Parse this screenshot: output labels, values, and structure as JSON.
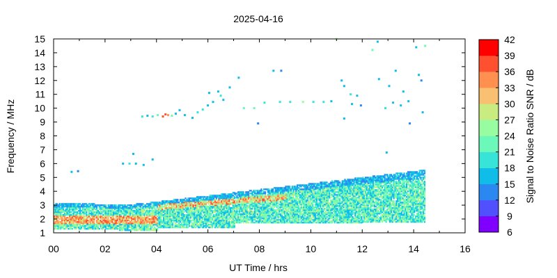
{
  "chart_data": {
    "type": "heatmap",
    "title": "2025-04-16",
    "xlabel": "UT Time / hrs",
    "ylabel": "Frequency / MHz",
    "colorbar_label": "Signal to Noise Ratio SNR / dB",
    "xlim": [
      0,
      16
    ],
    "ylim": [
      1,
      15
    ],
    "x_ticks": [
      "00",
      "02",
      "04",
      "06",
      "08",
      "10",
      "12",
      "14",
      "16"
    ],
    "y_ticks": [
      "1",
      "2",
      "3",
      "4",
      "5",
      "6",
      "7",
      "8",
      "9",
      "10",
      "11",
      "12",
      "13",
      "14",
      "15"
    ],
    "colorbar": {
      "levels": [
        "6",
        "9",
        "12",
        "15",
        "18",
        "21",
        "24",
        "27",
        "30",
        "33",
        "36",
        "39",
        "42"
      ],
      "colors": [
        "#8000ff",
        "#5050ff",
        "#2a88f0",
        "#10bce8",
        "#38e4d8",
        "#6cf8b8",
        "#98fca0",
        "#c8ec80",
        "#f8c070",
        "#ff9050",
        "#ff5030",
        "#ff0000"
      ]
    },
    "grid": false,
    "sporadic_points": [
      {
        "t": 0.7,
        "f": 5.4,
        "snr": 15
      },
      {
        "t": 0.95,
        "f": 5.45,
        "snr": 13
      },
      {
        "t": 2.7,
        "f": 6.0,
        "snr": 16
      },
      {
        "t": 2.95,
        "f": 6.0,
        "snr": 18
      },
      {
        "t": 3.1,
        "f": 6.7,
        "snr": 17
      },
      {
        "t": 3.2,
        "f": 6.0,
        "snr": 17
      },
      {
        "t": 3.5,
        "f": 5.9,
        "snr": 16
      },
      {
        "t": 3.85,
        "f": 6.3,
        "snr": 15
      },
      {
        "t": 3.45,
        "f": 9.4,
        "snr": 18
      },
      {
        "t": 3.65,
        "f": 9.45,
        "snr": 17
      },
      {
        "t": 3.85,
        "f": 9.4,
        "snr": 20
      },
      {
        "t": 4.05,
        "f": 9.5,
        "snr": 22
      },
      {
        "t": 4.25,
        "f": 9.4,
        "snr": 38
      },
      {
        "t": 4.35,
        "f": 9.55,
        "snr": 36
      },
      {
        "t": 4.45,
        "f": 9.5,
        "snr": 34
      },
      {
        "t": 4.6,
        "f": 9.45,
        "snr": 21
      },
      {
        "t": 4.75,
        "f": 9.6,
        "snr": 17
      },
      {
        "t": 4.9,
        "f": 9.85,
        "snr": 15
      },
      {
        "t": 5.1,
        "f": 9.5,
        "snr": 16
      },
      {
        "t": 5.4,
        "f": 9.3,
        "snr": 15
      },
      {
        "t": 5.6,
        "f": 9.7,
        "snr": 18
      },
      {
        "t": 5.8,
        "f": 9.9,
        "snr": 19
      },
      {
        "t": 6.0,
        "f": 10.2,
        "snr": 16
      },
      {
        "t": 6.05,
        "f": 11.1,
        "snr": 15
      },
      {
        "t": 6.4,
        "f": 11.2,
        "snr": 16
      },
      {
        "t": 6.5,
        "f": 10.9,
        "snr": 19
      },
      {
        "t": 6.85,
        "f": 11.5,
        "snr": 17
      },
      {
        "t": 6.6,
        "f": 10.6,
        "snr": 16
      },
      {
        "t": 6.2,
        "f": 10.45,
        "snr": 17
      },
      {
        "t": 7.2,
        "f": 12.2,
        "snr": 15
      },
      {
        "t": 7.4,
        "f": 10.0,
        "snr": 22
      },
      {
        "t": 7.8,
        "f": 10.0,
        "snr": 23
      },
      {
        "t": 7.95,
        "f": 8.9,
        "snr": 14
      },
      {
        "t": 8.2,
        "f": 10.4,
        "snr": 20
      },
      {
        "t": 8.55,
        "f": 12.7,
        "snr": 15
      },
      {
        "t": 8.85,
        "f": 12.7,
        "snr": 13
      },
      {
        "t": 8.8,
        "f": 10.45,
        "snr": 19
      },
      {
        "t": 9.2,
        "f": 10.45,
        "snr": 20
      },
      {
        "t": 9.7,
        "f": 10.45,
        "snr": 24
      },
      {
        "t": 10.1,
        "f": 10.45,
        "snr": 20
      },
      {
        "t": 10.5,
        "f": 10.45,
        "snr": 18
      },
      {
        "t": 10.8,
        "f": 10.5,
        "snr": 17
      },
      {
        "t": 11.0,
        "f": 15.0,
        "snr": 24
      },
      {
        "t": 11.2,
        "f": 12.0,
        "snr": 15
      },
      {
        "t": 11.3,
        "f": 11.6,
        "snr": 17
      },
      {
        "t": 11.55,
        "f": 11.0,
        "snr": 19
      },
      {
        "t": 11.3,
        "f": 9.25,
        "snr": 15
      },
      {
        "t": 11.6,
        "f": 10.3,
        "snr": 16
      },
      {
        "t": 11.8,
        "f": 10.9,
        "snr": 15
      },
      {
        "t": 11.95,
        "f": 10.2,
        "snr": 14
      },
      {
        "t": 12.4,
        "f": 14.2,
        "snr": 22
      },
      {
        "t": 12.6,
        "f": 14.8,
        "snr": 16
      },
      {
        "t": 12.65,
        "f": 12.1,
        "snr": 15
      },
      {
        "t": 12.9,
        "f": 10.0,
        "snr": 18
      },
      {
        "t": 12.95,
        "f": 6.8,
        "snr": 17
      },
      {
        "t": 13.05,
        "f": 11.6,
        "snr": 16
      },
      {
        "t": 13.2,
        "f": 10.4,
        "snr": 16
      },
      {
        "t": 13.3,
        "f": 12.7,
        "snr": 15
      },
      {
        "t": 13.5,
        "f": 10.2,
        "snr": 17
      },
      {
        "t": 13.6,
        "f": 11.2,
        "snr": 15
      },
      {
        "t": 13.8,
        "f": 10.5,
        "snr": 17
      },
      {
        "t": 13.85,
        "f": 8.9,
        "snr": 14
      },
      {
        "t": 14.1,
        "f": 14.4,
        "snr": 15
      },
      {
        "t": 14.2,
        "f": 12.4,
        "snr": 15
      },
      {
        "t": 14.3,
        "f": 12.0,
        "snr": 14
      },
      {
        "t": 14.35,
        "f": 9.7,
        "snr": 16
      },
      {
        "t": 14.45,
        "f": 14.5,
        "snr": 22
      }
    ]
  }
}
